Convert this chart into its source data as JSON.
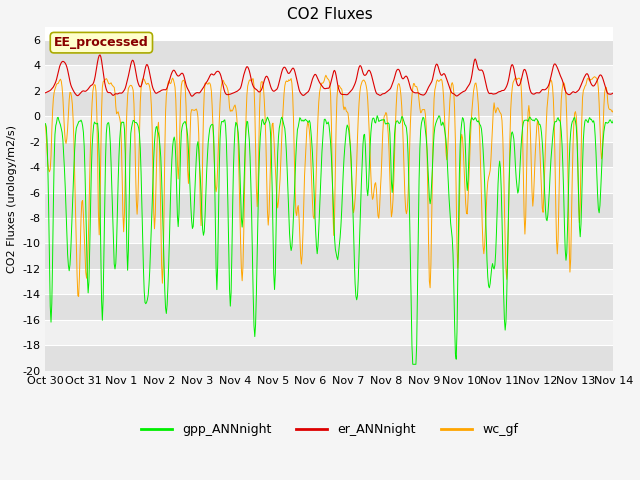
{
  "title": "CO2 Fluxes",
  "ylabel": "CO2 Fluxes (urology/m2/s)",
  "ylim": [
    -20,
    7
  ],
  "yticks": [
    -20,
    -18,
    -16,
    -14,
    -12,
    -10,
    -8,
    -6,
    -4,
    -2,
    0,
    2,
    4,
    6
  ],
  "xlabel": "",
  "fig_bg_color": "#f5f5f5",
  "plot_bg_color": "#ffffff",
  "band_color_dark": "#e0e0e0",
  "band_color_light": "#f0f0f0",
  "legend_labels": [
    "gpp_ANNnight",
    "er_ANNnight",
    "wc_gf"
  ],
  "gpp_color": "#00ee00",
  "er_color": "#dd0000",
  "wc_color": "#ffa500",
  "days": 15,
  "xtick_labels": [
    "Oct 30",
    "Oct 31",
    "Nov 1",
    "Nov 2",
    "Nov 3",
    "Nov 4",
    "Nov 5",
    "Nov 6",
    "Nov 7",
    "Nov 8",
    "Nov 9",
    "Nov 10",
    "Nov 11",
    "Nov 12",
    "Nov 13",
    "Nov 14"
  ],
  "title_fontsize": 11,
  "axis_fontsize": 8,
  "tick_fontsize": 8,
  "legend_fontsize": 9,
  "annotation_text": "EE_processed",
  "annotation_bg": "#ffffcc",
  "annotation_border": "#aaaa00"
}
